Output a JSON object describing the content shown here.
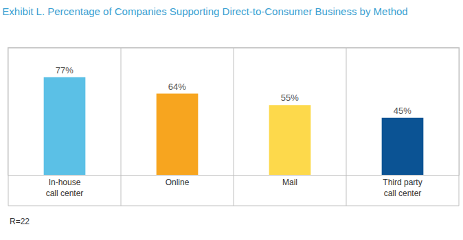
{
  "chart_data": {
    "type": "bar",
    "title": "Exhibit L. Percentage of Companies Supporting Direct-to-Consumer Business by Method",
    "categories": [
      "In-house\ncall center",
      "Online",
      "Mail",
      "Third party\ncall center"
    ],
    "values": [
      77,
      64,
      55,
      45
    ],
    "value_labels": [
      "77%",
      "64%",
      "55%",
      "45%"
    ],
    "colors": [
      "#5bc0e6",
      "#f7a51f",
      "#fdd94b",
      "#0b5394"
    ],
    "ylim": [
      0,
      100
    ],
    "grid": false,
    "data_labels": true,
    "tick_labels": "x",
    "footnote": "R=22"
  }
}
